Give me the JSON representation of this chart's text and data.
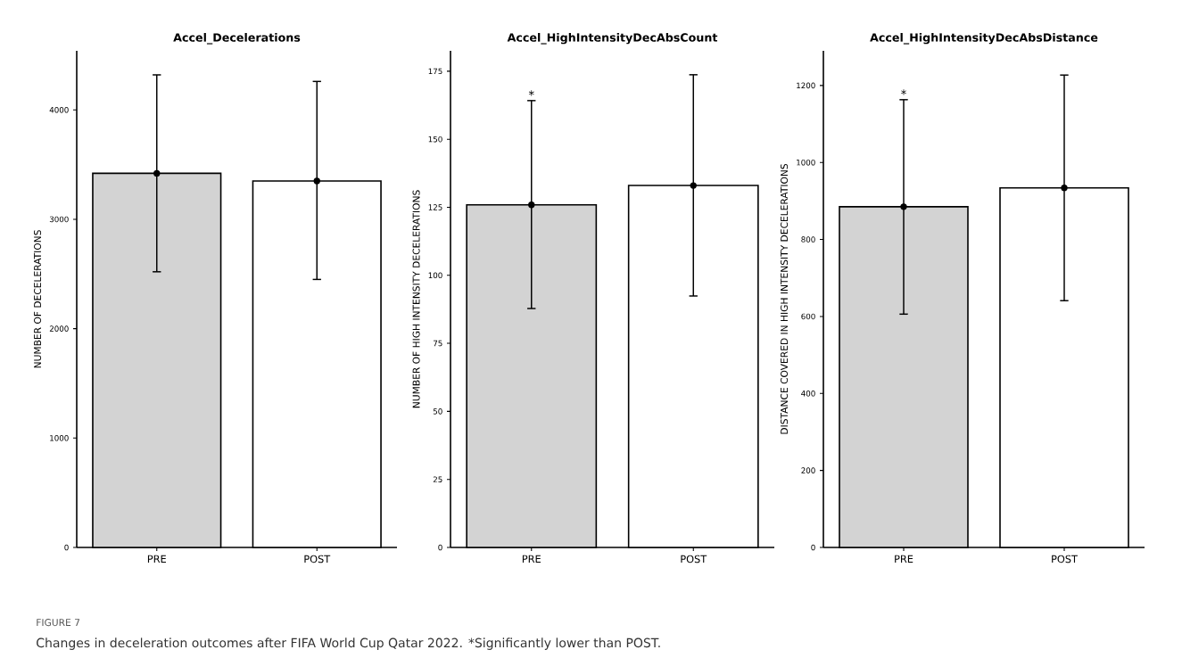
{
  "chart_data": [
    {
      "type": "bar",
      "title": "Accel_Decelerations",
      "ylabel": "NUMBER OF DECELERATIONS",
      "categories": [
        "PRE",
        "POST"
      ],
      "ylim": [
        0,
        4540
      ],
      "yticks": [
        0,
        1000,
        2000,
        3000,
        4000
      ],
      "series": [
        {
          "type": "bar",
          "values": [
            3420,
            3350
          ],
          "colors": [
            "#d3d3d3",
            "#ffffff"
          ]
        },
        {
          "type": "scatter",
          "x": [
            "PRE",
            "POST"
          ],
          "values": [
            3420,
            3350
          ],
          "errors": [
            [
              2520,
              4320
            ],
            [
              2450,
              4260
            ]
          ],
          "color": "#000000",
          "marker": "circle"
        }
      ]
    },
    {
      "type": "bar",
      "title": "Accel_HighIntensityDecAbsCount",
      "ylabel": "NUMBER OF HIGH INTENSITY DECELERATIONS",
      "categories": [
        "PRE",
        "POST"
      ],
      "ylim": [
        0,
        182.5
      ],
      "yticks": [
        0,
        25,
        50,
        75,
        100,
        125,
        150,
        175
      ],
      "series": [
        {
          "type": "bar",
          "values": [
            125.9,
            133.0
          ],
          "colors": [
            "#d3d3d3",
            "#ffffff"
          ]
        },
        {
          "type": "scatter",
          "x": [
            "PRE",
            "POST"
          ],
          "values": [
            125.9,
            133.0
          ],
          "errors": [
            [
              87.8,
              164.2
            ],
            [
              92.4,
              173.7
            ]
          ],
          "color": "#000000",
          "marker": "circle"
        }
      ],
      "annotations": [
        {
          "text": "*",
          "x": "PRE",
          "y": 164.2
        }
      ]
    },
    {
      "type": "bar",
      "title": "Accel_HighIntensityDecAbsDistance",
      "ylabel": "DISTANCE COVERED IN HIGH INTENSITY DECELERATIONS",
      "categories": [
        "PRE",
        "POST"
      ],
      "ylim": [
        0,
        1290
      ],
      "yticks": [
        0,
        200,
        400,
        600,
        800,
        1000,
        1200
      ],
      "series": [
        {
          "type": "bar",
          "values": [
            885,
            934
          ],
          "colors": [
            "#d3d3d3",
            "#ffffff"
          ]
        },
        {
          "type": "scatter",
          "x": [
            "PRE",
            "POST"
          ],
          "values": [
            885,
            934
          ],
          "errors": [
            [
              606,
              1163
            ],
            [
              641,
              1227
            ]
          ],
          "color": "#000000",
          "marker": "circle"
        }
      ],
      "annotations": [
        {
          "text": "*",
          "x": "PRE",
          "y": 1163
        }
      ]
    },
    {
      "type": "other",
      "annotations": [
        "FIGURE 7",
        "Changes in deceleration outcomes after FIFA World Cup Qatar 2022. *Significantly lower than POST."
      ]
    }
  ]
}
